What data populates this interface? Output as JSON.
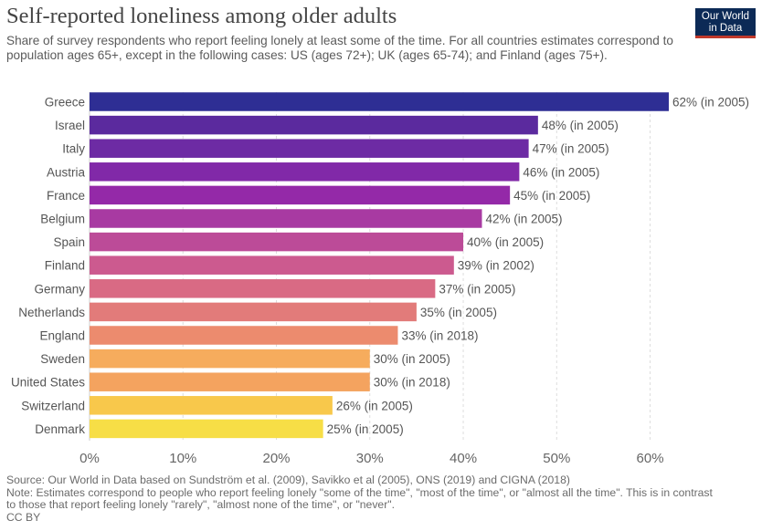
{
  "header": {
    "title": "Self-reported loneliness among older adults",
    "subtitle": "Share of survey respondents who report feeling lonely at least some of the time. For all countries estimates correspond to population ages 65+, except in the following cases: US (ages 72+); UK (ages 65-74); and Finland (ages 75+).",
    "logo_line1": "Our World",
    "logo_line2": "in Data"
  },
  "footer": {
    "source": "Source: Our World in Data based on Sundström et al. (2009), Savikko et al (2005), ONS (2019) and CIGNA (2018)",
    "note_line1": "Note: Estimates correspond to people who report feeling lonely \"some of the time\", \"most of the time\", or \"almost all the time\". This is in contrast",
    "note_line2": "to those that report feeling lonely \"rarely\", \"almost none of the time\", or \"never\".",
    "license": "CC BY"
  },
  "colors": {
    "logo_bg": "#0c2a56",
    "logo_accent": "#c0392b",
    "gridline": "#dddddd"
  },
  "chart_data": {
    "type": "bar",
    "orientation": "horizontal",
    "xlim": [
      0,
      62
    ],
    "x_ticks": [
      0,
      10,
      20,
      30,
      40,
      50,
      60
    ],
    "x_tick_labels": [
      "0%",
      "10%",
      "20%",
      "30%",
      "40%",
      "50%",
      "60%"
    ],
    "grid": true,
    "categories": [
      "Greece",
      "Israel",
      "Italy",
      "Austria",
      "France",
      "Belgium",
      "Spain",
      "Finland",
      "Germany",
      "Netherlands",
      "England",
      "Sweden",
      "United States",
      "Switzerland",
      "Denmark"
    ],
    "values": [
      62,
      48,
      47,
      46,
      45,
      42,
      40,
      39,
      37,
      35,
      33,
      30,
      30,
      26,
      25
    ],
    "value_labels": [
      "62% (in 2005)",
      "48% (in 2005)",
      "47% (in 2005)",
      "46% (in 2005)",
      "45% (in 2005)",
      "42% (in 2005)",
      "40% (in 2005)",
      "39% (in 2002)",
      "37% (in 2005)",
      "35% (in 2005)",
      "33% (in 2018)",
      "30% (in 2005)",
      "30% (in 2018)",
      "26% (in 2005)",
      "25% (in 2005)"
    ],
    "bar_colors": [
      "#2e2e94",
      "#5b2a9e",
      "#6d2ba4",
      "#8129a8",
      "#9429a8",
      "#a83aa2",
      "#bc4b98",
      "#cc5a8f",
      "#d96a84",
      "#e27b7a",
      "#ec8b6e",
      "#f6ac5d",
      "#f4a35f",
      "#f8c84b",
      "#f7de46"
    ]
  }
}
